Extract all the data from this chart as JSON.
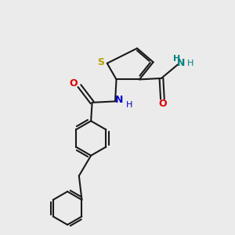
{
  "bg_color": "#ebebeb",
  "bond_color": "#1a1a1a",
  "bond_width": 1.5,
  "S_color": "#b8a000",
  "N_color": "#0000cc",
  "O_color": "#dd0000",
  "NH2_N_color": "#008080",
  "NH2_H_color": "#008080",
  "figsize": [
    3.0,
    3.0
  ],
  "dpi": 100,
  "xlim": [
    0,
    10
  ],
  "ylim": [
    0,
    10
  ]
}
